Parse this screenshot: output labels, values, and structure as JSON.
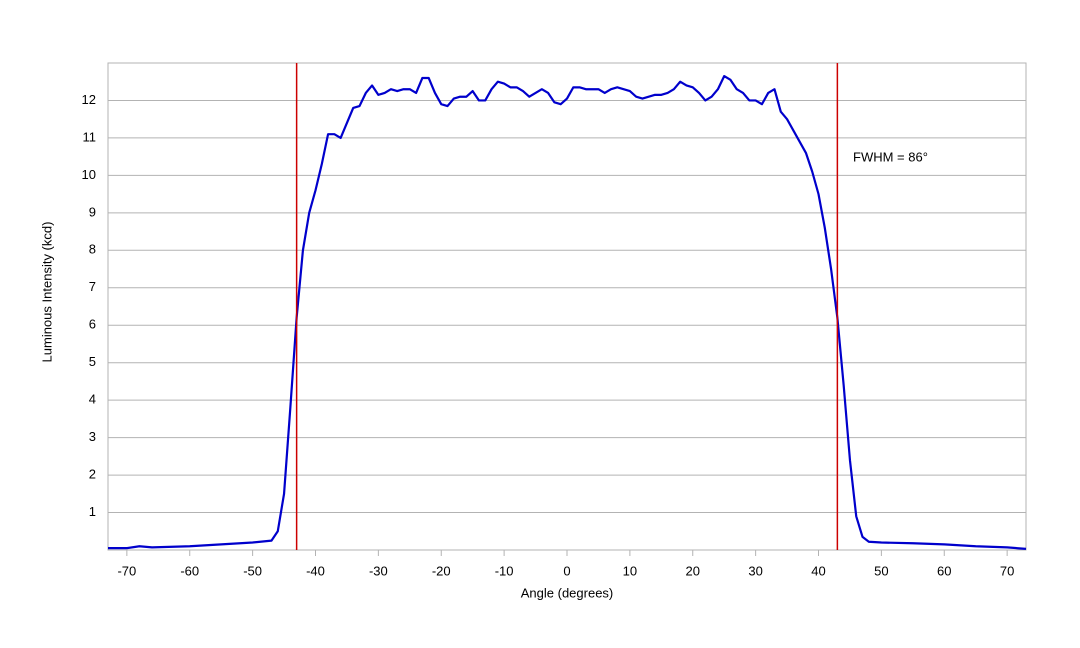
{
  "chart_data": {
    "type": "line",
    "x_label": "Angle (degrees)",
    "y_label": "Luminous Intensity (kcd)",
    "annotation": "FWHM = 86°",
    "xlim": [
      -73,
      73
    ],
    "ylim": [
      0,
      13
    ],
    "xticks": [
      -70,
      -60,
      -50,
      -40,
      -30,
      -20,
      -10,
      0,
      10,
      20,
      30,
      40,
      50,
      60,
      70
    ],
    "yticks": [
      1,
      2,
      3,
      4,
      5,
      6,
      7,
      8,
      9,
      10,
      11,
      12
    ],
    "grid": true,
    "vlines": [
      -43,
      43
    ],
    "vline_color": "#cc0000",
    "series": [
      {
        "color": "#0000cc",
        "x": [
          -73,
          -70,
          -68,
          -66,
          -60,
          -55,
          -50,
          -47,
          -46,
          -45,
          -44,
          -43,
          -42,
          -41,
          -40,
          -39,
          -38,
          -37,
          -36,
          -35,
          -34,
          -33,
          -32,
          -31,
          -30,
          -29,
          -28,
          -27,
          -26,
          -25,
          -24,
          -23,
          -22,
          -21,
          -20,
          -19,
          -18,
          -17,
          -16,
          -15,
          -14,
          -13,
          -12,
          -11,
          -10,
          -9,
          -8,
          -7,
          -6,
          -5,
          -4,
          -3,
          -2,
          -1,
          0,
          1,
          2,
          3,
          4,
          5,
          6,
          7,
          8,
          9,
          10,
          11,
          12,
          13,
          14,
          15,
          16,
          17,
          18,
          19,
          20,
          21,
          22,
          23,
          24,
          25,
          26,
          27,
          28,
          29,
          30,
          31,
          32,
          33,
          34,
          35,
          36,
          37,
          38,
          39,
          40,
          41,
          42,
          43,
          44,
          45,
          46,
          47,
          48,
          50,
          55,
          60,
          65,
          70,
          73
        ],
        "values": [
          0.05,
          0.05,
          0.1,
          0.07,
          0.1,
          0.15,
          0.2,
          0.25,
          0.5,
          1.5,
          3.8,
          6.2,
          8.0,
          9.0,
          9.6,
          10.3,
          11.1,
          11.1,
          11.0,
          11.4,
          11.8,
          11.85,
          12.2,
          12.4,
          12.15,
          12.2,
          12.3,
          12.25,
          12.3,
          12.3,
          12.2,
          12.6,
          12.6,
          12.2,
          11.9,
          11.85,
          12.05,
          12.1,
          12.1,
          12.25,
          12.0,
          12.0,
          12.3,
          12.5,
          12.45,
          12.35,
          12.35,
          12.25,
          12.1,
          12.2,
          12.3,
          12.2,
          11.95,
          11.9,
          12.05,
          12.35,
          12.35,
          12.3,
          12.3,
          12.3,
          12.2,
          12.3,
          12.35,
          12.3,
          12.25,
          12.1,
          12.05,
          12.1,
          12.15,
          12.15,
          12.2,
          12.3,
          12.5,
          12.4,
          12.35,
          12.2,
          12.0,
          12.1,
          12.3,
          12.65,
          12.55,
          12.3,
          12.2,
          12.0,
          12.0,
          11.9,
          12.2,
          12.3,
          11.7,
          11.5,
          11.2,
          10.9,
          10.6,
          10.1,
          9.5,
          8.6,
          7.5,
          6.2,
          4.4,
          2.4,
          0.9,
          0.35,
          0.22,
          0.2,
          0.18,
          0.15,
          0.1,
          0.07,
          0.03
        ]
      }
    ]
  }
}
